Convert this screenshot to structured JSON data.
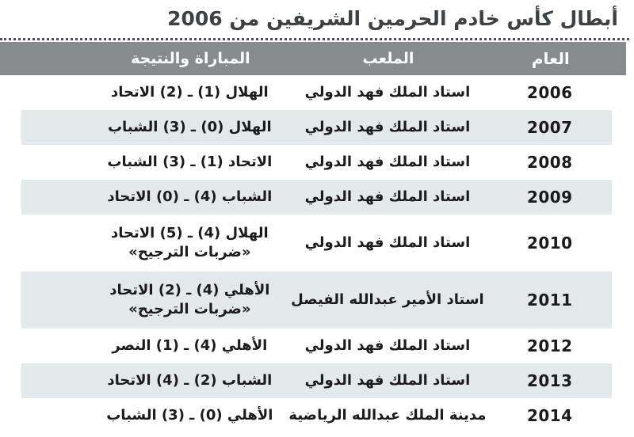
{
  "chart_data": {
    "type": "table",
    "title": "أبطال كأس خادم الحرمين الشريفين من 2006",
    "columns": {
      "year": "العام",
      "stadium": "الملعب",
      "match": "المباراة والنتيجة"
    },
    "rows": [
      {
        "year": "2006",
        "stadium": "استاد الملك فهد الدولي",
        "match": "الهلال (1) ـ (2) الاتحاد",
        "note": ""
      },
      {
        "year": "2007",
        "stadium": "استاد الملك فهد الدولي",
        "match": "الهلال (0) ـ (3) الشباب",
        "note": ""
      },
      {
        "year": "2008",
        "stadium": "استاد الملك فهد الدولي",
        "match": "الاتحاد (1) ـ (3) الشباب",
        "note": ""
      },
      {
        "year": "2009",
        "stadium": "استاد الملك فهد الدولي",
        "match": "الشباب (4) ـ (0) الاتحاد",
        "note": ""
      },
      {
        "year": "2010",
        "stadium": "استاد الملك فهد الدولي",
        "match": "الهلال (4) ـ (5) الاتحاد",
        "note": "«ضربات الترجيح»"
      },
      {
        "year": "2011",
        "stadium": "استاد الأمير عبدالله الفيصل",
        "match": "الأهلي (4) ـ (2) الاتحاد",
        "note": "«ضربات الترجيح»"
      },
      {
        "year": "2012",
        "stadium": "استاد الملك فهد الدولي",
        "match": "الأهلي (4) ـ (1) النصر",
        "note": ""
      },
      {
        "year": "2013",
        "stadium": "استاد الملك فهد الدولي",
        "match": "الشباب (2) ـ (4) الاتحاد",
        "note": ""
      },
      {
        "year": "2014",
        "stadium": "مدينة الملك عبدالله الرياضية",
        "match": "الأهلي (0) ـ (3) الشباب",
        "note": ""
      }
    ]
  },
  "colors": {
    "header_bg": "#878b8e",
    "row_alt_bg": "#e3e8ea",
    "text": "#1b1b1b",
    "title": "#3e4143",
    "header_text": "#ffffff",
    "rule": "#4f4f4f"
  }
}
